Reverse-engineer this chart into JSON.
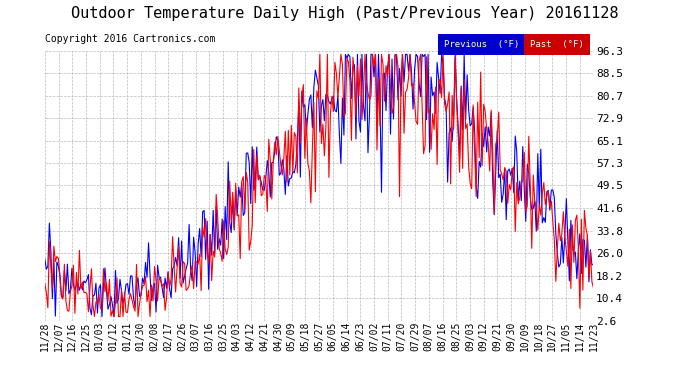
{
  "title": "Outdoor Temperature Daily High (Past/Previous Year) 20161128",
  "copyright": "Copyright 2016 Cartronics.com",
  "ylabel_right": [
    "96.3",
    "88.5",
    "80.7",
    "72.9",
    "65.1",
    "57.3",
    "49.5",
    "41.6",
    "33.8",
    "26.0",
    "18.2",
    "10.4",
    "2.6"
  ],
  "yticks": [
    96.3,
    88.5,
    80.7,
    72.9,
    65.1,
    57.3,
    49.5,
    41.6,
    33.8,
    26.0,
    18.2,
    10.4,
    2.6
  ],
  "ylim": [
    2.6,
    96.3
  ],
  "xtick_labels": [
    "11/28",
    "12/07",
    "12/16",
    "12/25",
    "01/03",
    "01/12",
    "01/21",
    "01/30",
    "02/08",
    "02/17",
    "02/26",
    "03/07",
    "03/16",
    "03/25",
    "04/03",
    "04/12",
    "04/21",
    "04/30",
    "05/09",
    "05/18",
    "05/27",
    "06/05",
    "06/14",
    "06/23",
    "07/02",
    "07/11",
    "07/20",
    "07/29",
    "08/07",
    "08/16",
    "08/25",
    "09/03",
    "09/12",
    "09/21",
    "09/30",
    "10/09",
    "10/18",
    "10/27",
    "11/05",
    "11/14",
    "11/23"
  ],
  "legend_previous_bg": "#0000cc",
  "legend_past_bg": "#cc0000",
  "background_color": "#ffffff",
  "grid_color": "#aaaaaa",
  "title_fontsize": 11,
  "copyright_fontsize": 7,
  "tick_fontsize": 7,
  "n_points": 366,
  "blue_color": "#0000ff",
  "red_color": "#ff0000"
}
